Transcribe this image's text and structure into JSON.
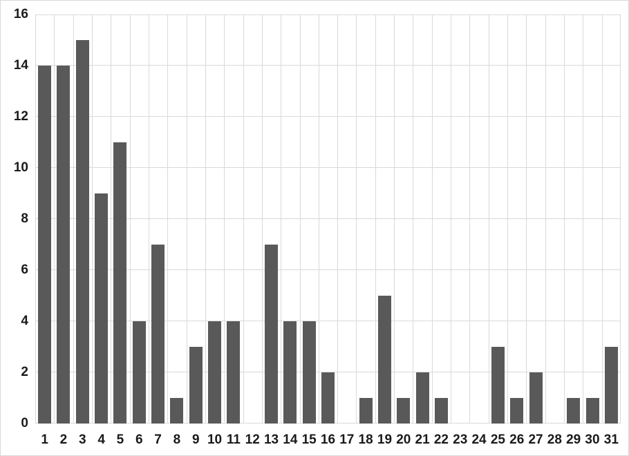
{
  "chart_data": {
    "type": "bar",
    "title": "",
    "xlabel": "",
    "ylabel": "",
    "categories": [
      "1",
      "2",
      "3",
      "4",
      "5",
      "6",
      "7",
      "8",
      "9",
      "10",
      "11",
      "12",
      "13",
      "14",
      "15",
      "16",
      "17",
      "18",
      "19",
      "20",
      "21",
      "22",
      "23",
      "24",
      "25",
      "26",
      "27",
      "28",
      "29",
      "30",
      "31"
    ],
    "values": [
      14,
      14,
      15,
      9,
      11,
      4,
      7,
      1,
      3,
      4,
      4,
      0,
      7,
      4,
      4,
      2,
      0,
      1,
      5,
      1,
      2,
      1,
      0,
      0,
      3,
      1,
      2,
      0,
      1,
      1,
      3
    ],
    "ylim": [
      0,
      16
    ],
    "ytick_step": 2,
    "ytick_labels": [
      "0",
      "2",
      "4",
      "6",
      "8",
      "10",
      "12",
      "14",
      "16"
    ],
    "grid": true,
    "legend": "none",
    "colors": {
      "bar": "#595959",
      "gridline": "#d9d9d9",
      "tick_label": "#1a1a1a",
      "background": "#ffffff",
      "canvas_border": "#d9d9d9"
    }
  }
}
